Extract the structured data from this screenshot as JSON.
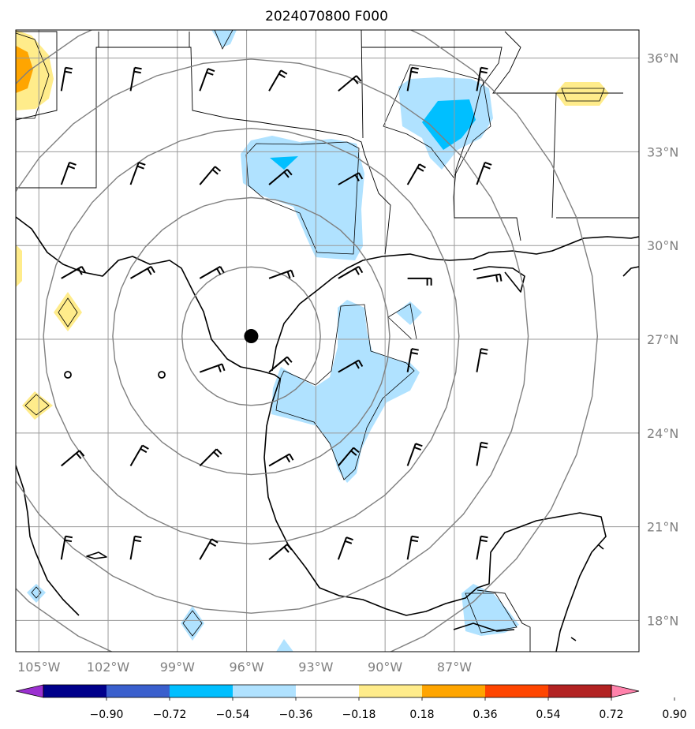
{
  "title": "2024070800 F000",
  "map": {
    "lon_labels": [
      "105°W",
      "102°W",
      "99°W",
      "96°W",
      "93°W",
      "90°W",
      "87°W"
    ],
    "lat_labels": [
      "36°N",
      "33°N",
      "30°N",
      "27°N",
      "24°N",
      "21°N",
      "18°N"
    ],
    "storm_center": {
      "lat": 27.1,
      "lon": -95.8
    },
    "range_rings_deg": [
      3,
      6,
      9,
      12,
      15
    ]
  },
  "colorbar": {
    "ticks": [
      "−0.90",
      "−0.72",
      "−0.54",
      "−0.36",
      "−0.18",
      "0.18",
      "0.36",
      "0.54",
      "0.72",
      "0.90"
    ],
    "colors": [
      "#9b30d0",
      "#00008b",
      "#3a5fcd",
      "#00bfff",
      "#b0e2ff",
      "#ffffff",
      "#ffec8b",
      "#ffa500",
      "#ff4500",
      "#b22222",
      "#ff82ab"
    ]
  }
}
